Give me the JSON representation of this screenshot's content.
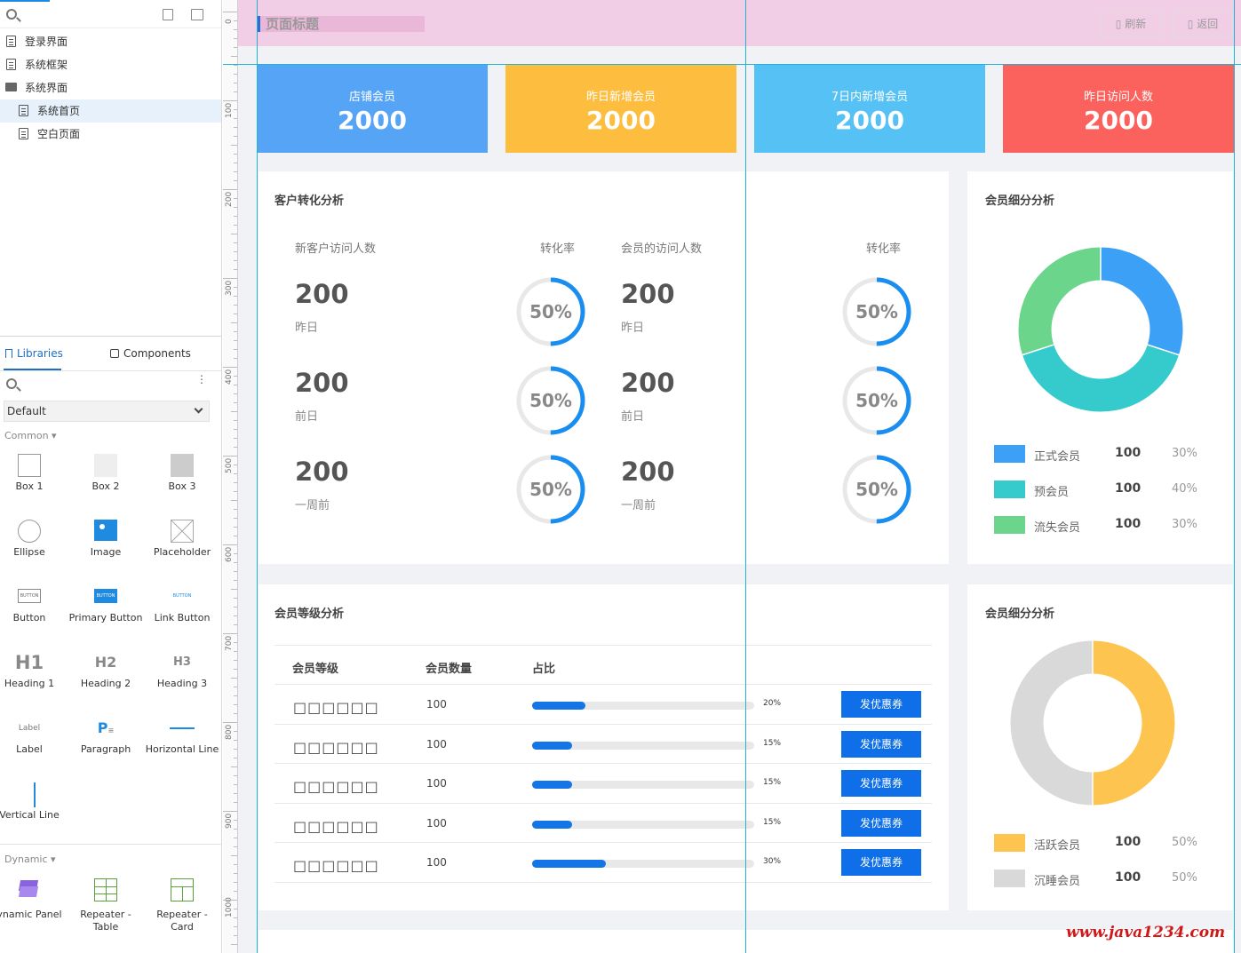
{
  "pages": {
    "items": [
      {
        "label": "登录界面",
        "icon": "page-icon"
      },
      {
        "label": "系统框架",
        "icon": "page-icon"
      },
      {
        "label": "系统界面",
        "icon": "folder-icon"
      },
      {
        "label": "系统首页",
        "icon": "page-icon",
        "selected": true
      },
      {
        "label": "空白页面",
        "icon": "page-icon"
      }
    ]
  },
  "libraries": {
    "tab_libraries": "Libraries",
    "tab_components": "Components",
    "selected_library": "Default",
    "section_common": "Common",
    "section_dynamic": "Dynamic",
    "widgets": [
      "Box 1",
      "Box 2",
      "Box 3",
      "Ellipse",
      "Image",
      "Placeholder",
      "Button",
      "Primary Button",
      "Link Button",
      "Heading 1",
      "Heading 2",
      "Heading 3",
      "Label",
      "Paragraph",
      "Horizontal Line",
      "Vertical Line"
    ],
    "widget_glyphs": {
      "button": "BUTTON",
      "h1": "H1",
      "h2": "H2",
      "h3": "H3",
      "label": "Label",
      "paragraph": "P"
    },
    "dynamic_widgets": [
      "ynamic Panel",
      "Repeater - Table",
      "Repeater - Card"
    ]
  },
  "ruler": {
    "labels": [
      "0",
      "100",
      "200",
      "300",
      "400",
      "500",
      "600",
      "700",
      "800",
      "900",
      "1000"
    ]
  },
  "header": {
    "title": "页面标题",
    "refresh": "▯ 刷新",
    "back": "▯ 返回"
  },
  "stats": [
    {
      "label": "店铺会员",
      "value": "2000",
      "color": "#56a4f5"
    },
    {
      "label": "昨日新增会员",
      "value": "2000",
      "color": "#fdbe3f"
    },
    {
      "label": "7日内新增会员",
      "value": "2000",
      "color": "#56c1f5"
    },
    {
      "label": "昨日访问人数",
      "value": "2000",
      "color": "#fc625d"
    }
  ],
  "conversion": {
    "title": "客户转化分析",
    "col_new_visitors": "新客户访问人数",
    "col_rate": "转化率",
    "col_member_visitors": "会员的访问人数",
    "col_rate2": "转化率",
    "rows": [
      {
        "value": "200",
        "period": "昨日",
        "rate": "50%",
        "rate_value": 50
      },
      {
        "value": "200",
        "period": "前日",
        "rate": "50%",
        "rate_value": 50
      },
      {
        "value": "200",
        "period": "一周前",
        "rate": "50%",
        "rate_value": 50
      }
    ],
    "ring_color": "#1a8ef0",
    "ring_track": "#e8e8e8"
  },
  "segment1": {
    "title": "会员细分分析",
    "items": [
      {
        "label": "正式会员",
        "count": "100",
        "pct": "30%",
        "share": 30,
        "color": "#3ca0f6"
      },
      {
        "label": "预会员",
        "count": "100",
        "pct": "40%",
        "share": 40,
        "color": "#35cbcc"
      },
      {
        "label": "流失会员",
        "count": "100",
        "pct": "30%",
        "share": 30,
        "color": "#6bd58b"
      }
    ]
  },
  "levels": {
    "title": "会员等级分析",
    "head_level": "会员等级",
    "head_count": "会员数量",
    "head_ratio": "占比",
    "rows": [
      {
        "name": "□□□□□□",
        "count": "100",
        "pct": "20%",
        "ratio": 24,
        "button": "发优惠券"
      },
      {
        "name": "□□□□□□",
        "count": "100",
        "pct": "15%",
        "ratio": 18,
        "button": "发优惠券"
      },
      {
        "name": "□□□□□□",
        "count": "100",
        "pct": "15%",
        "ratio": 18,
        "button": "发优惠券"
      },
      {
        "name": "□□□□□□",
        "count": "100",
        "pct": "15%",
        "ratio": 18,
        "button": "发优惠券"
      },
      {
        "name": "□□□□□□",
        "count": "100",
        "pct": "30%",
        "ratio": 33,
        "button": "发优惠券"
      }
    ]
  },
  "segment2": {
    "title": "会员细分分析",
    "items": [
      {
        "label": "活跃会员",
        "count": "100",
        "pct": "50%",
        "share": 50,
        "color": "#fdc550"
      },
      {
        "label": "沉睡会员",
        "count": "100",
        "pct": "50%",
        "share": 50,
        "color": "#d9d9d9"
      }
    ]
  },
  "watermark": "www.java1234.com"
}
